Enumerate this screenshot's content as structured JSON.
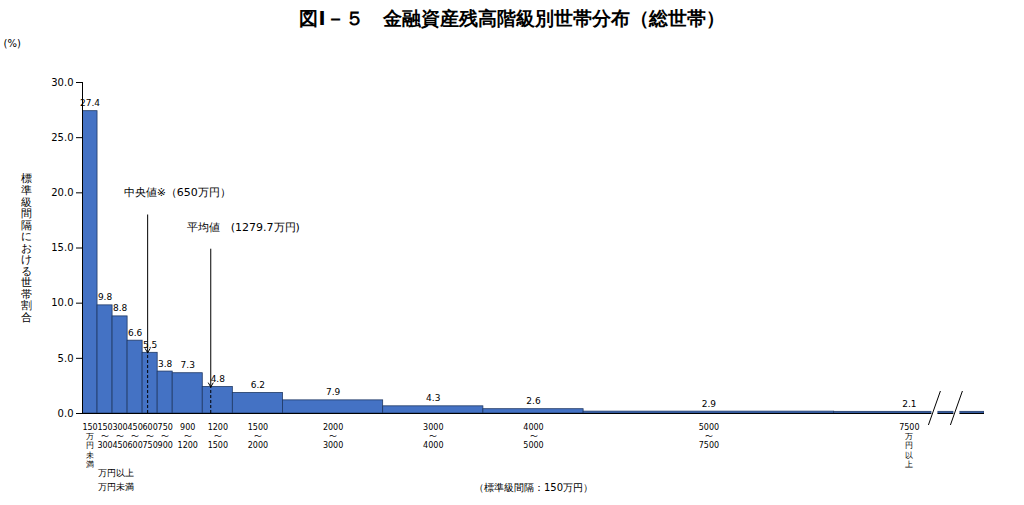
{
  "chart_data": {
    "type": "histogram",
    "title": "図Ⅰ－５　金融資産残高階級別世帯分布（総世帯）",
    "y_label": "標準級間隔における世帯割合",
    "y_unit": "(%)",
    "x_label": "（標準級間隔：150万円）",
    "bins": [
      0,
      150,
      300,
      450,
      600,
      750,
      900,
      1200,
      1500,
      2000,
      3000,
      4000,
      5000,
      7500,
      null
    ],
    "categories": [
      "150\n万\n円\n未\n満",
      "150\n〜\n300",
      "300\n〜\n450",
      "450\n〜\n600",
      "600\n〜\n750",
      "750\n〜\n900",
      "900\n〜\n1200",
      "1200\n〜\n1500",
      "1500\n〜\n2000",
      "2000\n〜\n3000",
      "3000\n〜\n4000",
      "4000\n〜\n5000",
      "5000\n〜\n7500",
      "7500\n万\n円\n以\n上"
    ],
    "values": [
      27.4,
      9.8,
      8.8,
      6.6,
      5.5,
      3.8,
      3.65,
      2.4,
      1.86,
      1.19,
      0.65,
      0.39,
      0.17,
      0.15
    ],
    "shares": [
      27.4,
      9.8,
      8.8,
      6.6,
      5.5,
      3.8,
      7.3,
      4.8,
      6.2,
      7.9,
      4.3,
      2.6,
      2.9,
      2.1
    ],
    "x_notes": [
      "万円以上",
      "万円未満"
    ],
    "annotations": [
      {
        "text": "中央値※（650万円）",
        "x": 650
      },
      {
        "text": "平均値　(1279.7万円)",
        "x": 1279.7
      }
    ],
    "xlim": [
      0,
      9000
    ],
    "ylim": [
      0,
      30
    ],
    "yticks": [
      {
        "value": 0,
        "label": "0.0"
      },
      {
        "value": 5,
        "label": "5.0"
      },
      {
        "value": 10,
        "label": "10.0"
      },
      {
        "value": 15,
        "label": "15.0"
      },
      {
        "value": 20,
        "label": "20.0"
      },
      {
        "value": 25,
        "label": "25.0"
      },
      {
        "value": 30,
        "label": "30.0"
      }
    ],
    "color": "#4472c4",
    "data_labels": true
  }
}
